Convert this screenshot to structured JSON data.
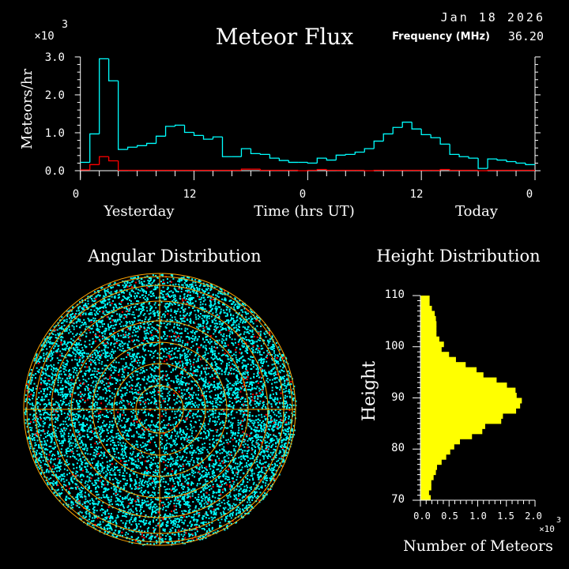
{
  "header": {
    "date": "Jan 18 2026",
    "frequency_label": "Frequency (MHz)",
    "frequency_value": "36.20"
  },
  "colors": {
    "background": "#000000",
    "all_meteors": "#00ffff",
    "secondary": "#ff0000",
    "grid": "#ffa500",
    "height_bars": "#ffff00",
    "axes": "#ffffff"
  },
  "chart_data": [
    {
      "type": "line",
      "title": "Meteor Flux",
      "xlabel": "Time (hrs UT)",
      "ylabel": "Meteors/hr",
      "y_multiplier": "×10",
      "y_multiplier_exponent": "3",
      "day_labels": [
        "Yesterday",
        "Today"
      ],
      "xtick_labels": [
        "0",
        "12",
        "0",
        "12",
        "0"
      ],
      "ytick_labels": [
        "0.0",
        "1.0",
        "2.0",
        "3.0"
      ],
      "xlim_hours": [
        0,
        48
      ],
      "ylim": [
        0,
        3.0
      ],
      "step": true,
      "series": [
        {
          "color": "#00ffff",
          "values": [
            0.22,
            0.97,
            2.95,
            2.37,
            0.56,
            0.62,
            0.66,
            0.72,
            0.91,
            1.17,
            1.2,
            1.01,
            0.93,
            0.83,
            0.89,
            0.37,
            0.37,
            0.58,
            0.45,
            0.43,
            0.33,
            0.27,
            0.22,
            0.22,
            0.2,
            0.33,
            0.28,
            0.41,
            0.43,
            0.49,
            0.58,
            0.78,
            0.97,
            1.14,
            1.28,
            1.1,
            0.95,
            0.87,
            0.7,
            0.43,
            0.37,
            0.33,
            0.06,
            0.31,
            0.28,
            0.24,
            0.2,
            0.16
          ]
        },
        {
          "color": "#ff0000",
          "values": [
            0.02,
            0.16,
            0.37,
            0.26,
            0.01,
            0.01,
            0.01,
            0.01,
            0.01,
            0.01,
            0.01,
            0.01,
            0.01,
            0.01,
            0.01,
            0.01,
            0.01,
            0.04,
            0.04,
            0.01,
            0.01,
            0.01,
            0.01,
            0.0,
            0.01,
            0.03,
            0.01,
            0.01,
            0.01,
            0.01,
            0.0,
            0.01,
            0.01,
            0.01,
            0.01,
            0.01,
            0.01,
            0.01,
            0.03,
            0.01,
            0.01,
            0.01,
            0.0,
            0.01,
            0.01,
            0.01,
            0.01,
            0.01
          ]
        }
      ]
    },
    {
      "type": "scatter",
      "title": "Angular Distribution",
      "projection": "polar sky map",
      "series_colors": [
        "#00ffff",
        "#ff0000"
      ],
      "grid": true
    },
    {
      "type": "bar",
      "orientation": "horizontal",
      "title": "Height Distribution",
      "xlabel": "Number of Meteors",
      "ylabel": "Height",
      "x_multiplier": "×10",
      "x_multiplier_exponent": "3",
      "xtick_labels": [
        "0.0",
        "0.5",
        "1.0",
        "1.5",
        "2.0"
      ],
      "ytick_labels": [
        "70",
        "80",
        "90",
        "100",
        "110"
      ],
      "xlim": [
        0,
        2.0
      ],
      "ylim": [
        70,
        110
      ],
      "bin_start_heights": [
        70,
        71,
        72,
        73,
        74,
        75,
        76,
        77,
        78,
        79,
        80,
        81,
        82,
        83,
        84,
        85,
        86,
        87,
        88,
        89,
        90,
        91,
        92,
        93,
        94,
        95,
        96,
        97,
        98,
        99,
        100,
        101,
        102,
        103,
        104,
        105,
        106,
        107,
        108,
        109
      ],
      "values": [
        0.18,
        0.15,
        0.19,
        0.19,
        0.23,
        0.27,
        0.29,
        0.37,
        0.45,
        0.52,
        0.59,
        0.69,
        0.9,
        1.08,
        1.13,
        1.41,
        1.44,
        1.67,
        1.74,
        1.77,
        1.68,
        1.66,
        1.51,
        1.33,
        1.1,
        0.98,
        0.79,
        0.62,
        0.5,
        0.37,
        0.41,
        0.33,
        0.28,
        0.28,
        0.28,
        0.27,
        0.25,
        0.2,
        0.16,
        0.16
      ]
    }
  ]
}
